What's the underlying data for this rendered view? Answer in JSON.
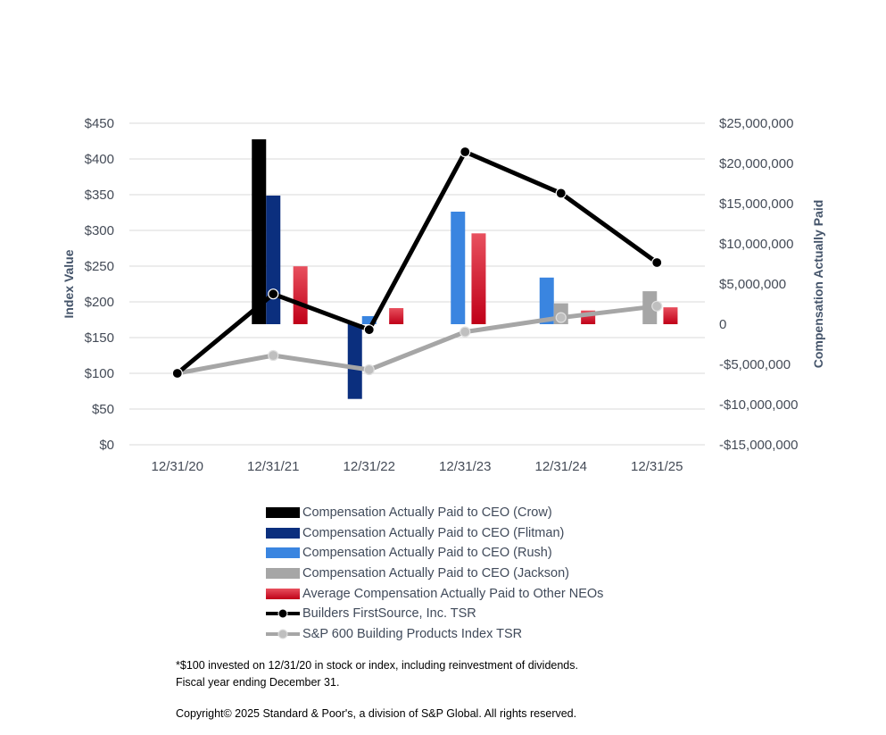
{
  "chart_data": {
    "type": "bar+line",
    "categories": [
      "12/31/20",
      "12/31/21",
      "12/31/22",
      "12/31/23",
      "12/31/24",
      "12/31/25"
    ],
    "left_axis": {
      "title": "Index Value",
      "ylim": [
        0,
        450
      ],
      "ticks": [
        0,
        50,
        100,
        150,
        200,
        250,
        300,
        350,
        400,
        450
      ],
      "tick_labels": [
        "$0",
        "$50",
        "$100",
        "$150",
        "$200",
        "$250",
        "$300",
        "$350",
        "$400",
        "$450"
      ]
    },
    "right_axis": {
      "title": "Compensation Actually Paid",
      "ylim": [
        -15000000,
        25000000
      ],
      "ticks": [
        -15000000,
        -10000000,
        -5000000,
        0,
        5000000,
        10000000,
        15000000,
        20000000,
        25000000
      ],
      "tick_labels": [
        "-$15,000,000",
        "-$10,000,000",
        "-$5,000,000",
        "0",
        "$5,000,000",
        "$10,000,000",
        "$15,000,000",
        "$20,000,000",
        "$25,000,000"
      ]
    },
    "bar_series": [
      {
        "name": "Compensation Actually Paid to CEO (Crow)",
        "color": "#000000",
        "values": [
          null,
          23000000,
          null,
          null,
          null,
          null
        ]
      },
      {
        "name": "Compensation Actually Paid to CEO (Flitman)",
        "color": "#0b2f7e",
        "values": [
          null,
          16000000,
          -9300000,
          null,
          null,
          null
        ]
      },
      {
        "name": "Compensation Actually Paid to CEO (Rush)",
        "color": "#3a85e0",
        "values": [
          null,
          null,
          1000000,
          14000000,
          5800000,
          null
        ]
      },
      {
        "name": "Compensation Actually Paid to CEO (Jackson)",
        "color": "#a6a6a6",
        "values": [
          null,
          null,
          null,
          null,
          2600000,
          4100000
        ]
      },
      {
        "name": "Average Compensation Actually Paid to Other NEOs",
        "color": "#d01a30",
        "values": [
          null,
          7200000,
          2000000,
          11300000,
          1700000,
          2100000
        ]
      }
    ],
    "line_series": [
      {
        "name": "Builders FirstSource, Inc. TSR",
        "color": "#000000",
        "values": [
          100,
          211,
          161,
          410,
          352,
          255
        ]
      },
      {
        "name": "S&P 600 Building Products Index TSR",
        "color": "#a6a6a6",
        "values": [
          100,
          125,
          105,
          158,
          178,
          194
        ]
      }
    ]
  },
  "legend": [
    {
      "label": "Compensation Actually Paid to CEO (Crow)",
      "kind": "bar",
      "color": "#000000"
    },
    {
      "label": "Compensation Actually Paid to CEO (Flitman)",
      "kind": "bar",
      "color": "#0b2f7e"
    },
    {
      "label": "Compensation Actually Paid to CEO (Rush)",
      "kind": "bar",
      "color": "#3a85e0"
    },
    {
      "label": "Compensation Actually Paid to CEO (Jackson)",
      "kind": "bar",
      "color": "#a6a6a6"
    },
    {
      "label": "Average Compensation Actually Paid to Other NEOs",
      "kind": "bar",
      "color": "#d01a30"
    },
    {
      "label": "Builders FirstSource, Inc. TSR",
      "kind": "line",
      "color": "#000000"
    },
    {
      "label": "S&P 600 Building Products Index TSR",
      "kind": "line",
      "color": "#a6a6a6"
    }
  ],
  "notes": {
    "line1": "*$100 invested on 12/31/20 in stock or index, including reinvestment of dividends.",
    "line2": "Fiscal year ending December 31.",
    "copyright": "Copyright© 2025 Standard & Poor's, a division of S&P Global. All rights reserved."
  }
}
